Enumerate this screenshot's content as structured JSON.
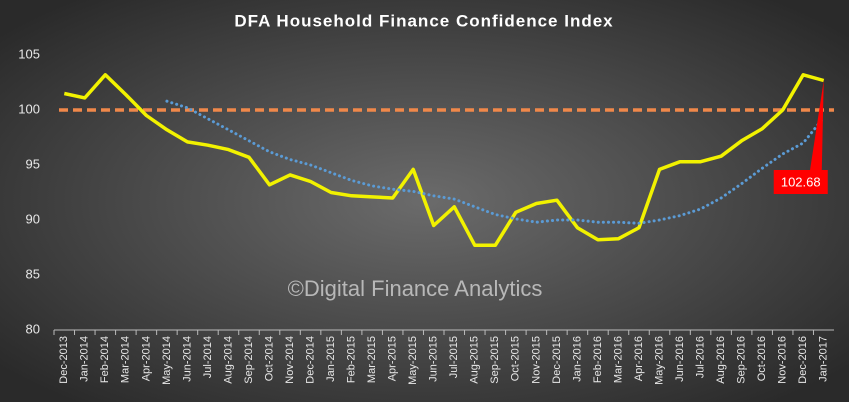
{
  "chart_data": {
    "type": "line",
    "title": "DFA Household Finance Confidence Index",
    "watermark": "©Digital Finance Analytics",
    "categories": [
      "Dec-2013",
      "Jan-2014",
      "Feb-2014",
      "Mar-2014",
      "Apr-2014",
      "May-2014",
      "Jun-2014",
      "Jul-2014",
      "Aug-2014",
      "Sep-2014",
      "Oct-2014",
      "Nov-2014",
      "Dec-2014",
      "Jan-2015",
      "Feb-2015",
      "Mar-2015",
      "Apr-2015",
      "May-2015",
      "Jun-2015",
      "Jul-2015",
      "Aug-2015",
      "Sep-2015",
      "Oct-2015",
      "Nov-2015",
      "Dec-2015",
      "Jan-2016",
      "Feb-2016",
      "Mar-2016",
      "Apr-2016",
      "May-2016",
      "Jun-2016",
      "Jul-2016",
      "Aug-2016",
      "Sep-2016",
      "Oct-2016",
      "Nov-2016",
      "Dec-2016",
      "Jan-2017"
    ],
    "series": [
      {
        "color": "#f2f200",
        "style": "solid",
        "values": [
          101.5,
          101.1,
          103.2,
          101.4,
          99.5,
          98.2,
          97.1,
          96.8,
          96.4,
          95.7,
          93.2,
          94.1,
          93.5,
          92.5,
          92.2,
          92.1,
          92.0,
          94.6,
          89.5,
          91.2,
          87.7,
          87.7,
          90.7,
          91.5,
          91.8,
          89.3,
          88.2,
          88.3,
          89.3,
          94.6,
          95.3,
          95.3,
          95.8,
          97.2,
          98.3,
          100.0,
          103.2,
          102.68
        ]
      },
      {
        "color": "#5b9bd5",
        "style": "dotted",
        "values": [
          null,
          null,
          null,
          null,
          null,
          100.8,
          100.2,
          99.2,
          98.2,
          97.2,
          96.2,
          95.5,
          95.0,
          94.3,
          93.6,
          93.1,
          92.8,
          92.6,
          92.2,
          91.9,
          91.2,
          90.5,
          90.1,
          89.8,
          90.0,
          90.0,
          89.8,
          89.8,
          89.7,
          90.0,
          90.4,
          91.0,
          92.0,
          93.3,
          94.7,
          96.0,
          97.0,
          99.3
        ]
      }
    ],
    "reference_line": {
      "value": 100,
      "color": "#f0884a"
    },
    "ylim": [
      80,
      105
    ],
    "yticks": [
      80,
      85,
      90,
      95,
      100,
      105
    ]
  }
}
